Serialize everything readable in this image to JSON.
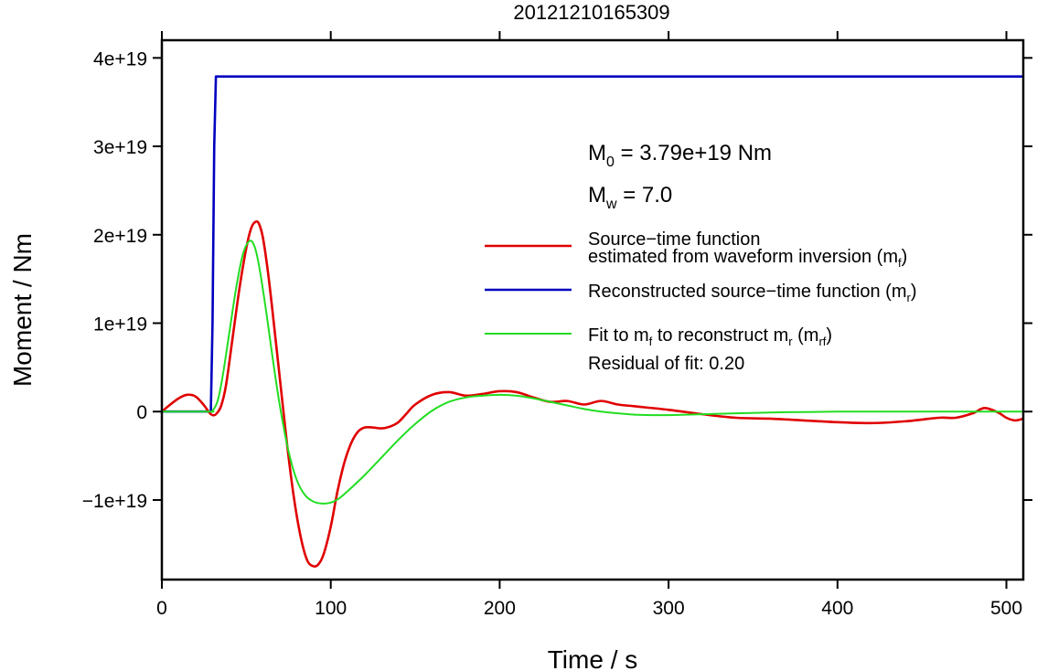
{
  "chart_data": {
    "type": "line",
    "title": "20121210165309",
    "xlabel": "Time / s",
    "ylabel": "Moment / Nm",
    "xlim": [
      0,
      510
    ],
    "ylim": [
      -1.9e+19,
      4.2e+19
    ],
    "x_ticks": [
      0,
      100,
      200,
      300,
      400,
      500
    ],
    "x_tick_labels": [
      "0",
      "100",
      "200",
      "300",
      "400",
      "500"
    ],
    "y_ticks": [
      -1e+19,
      0,
      1e+19,
      2e+19,
      3e+19,
      4e+19
    ],
    "y_tick_labels": [
      "−1e+19",
      "0",
      "1e+19",
      "2e+19",
      "3e+19",
      "4e+19"
    ],
    "grid": false,
    "legend_position": "right",
    "annotations": {
      "m0": {
        "symbol": "M",
        "sub": "0",
        "text": " = 3.79e+19 Nm"
      },
      "mw": {
        "symbol": "M",
        "sub": "w",
        "text": " = 7.0"
      },
      "residual": "Residual of fit: 0.20"
    },
    "legend": [
      {
        "line1": "Source−time function",
        "line2_pre": "estimated from waveform inversion (m",
        "line2_sub": "f",
        "line2_post": ")",
        "color": "#e00000"
      },
      {
        "pre": "Reconstructed source−time function (m",
        "sub": "r",
        "post": ")",
        "color": "#0000c0"
      },
      {
        "pre": "Fit to m",
        "sub": "f",
        "mid": " to reconstruct m",
        "sub2": "r",
        "mid2": " (m",
        "sub3": "rf",
        "post": ")",
        "color": "#22dd22"
      }
    ],
    "series": [
      {
        "color": "#0000c0",
        "x": [
          0,
          29,
          30,
          31,
          32,
          510
        ],
        "y": [
          0,
          0,
          1e+19,
          3e+19,
          3.79e+19,
          3.79e+19
        ]
      },
      {
        "color": "#e00000",
        "x": [
          0,
          5,
          10,
          15,
          20,
          25,
          28,
          30,
          32,
          35,
          38,
          42,
          46,
          50,
          53,
          56,
          58,
          60,
          63,
          66,
          70,
          74,
          78,
          82,
          86,
          90,
          93,
          96,
          100,
          104,
          108,
          112,
          116,
          120,
          125,
          130,
          135,
          140,
          145,
          150,
          160,
          170,
          180,
          190,
          200,
          210,
          220,
          230,
          240,
          250,
          260,
          270,
          280,
          300,
          320,
          340,
          360,
          380,
          400,
          420,
          440,
          460,
          470,
          480,
          487,
          495,
          500,
          505,
          510
        ],
        "y": [
          0,
          8e+17,
          1.5e+18,
          1.9e+18,
          1.7e+18,
          7e+17,
          -1e+17,
          -4e+17,
          -3e+17,
          6e+17,
          3e+18,
          8.5e+18,
          1.4e+19,
          1.85e+19,
          2.08e+19,
          2.15e+19,
          2.1e+19,
          1.95e+19,
          1.55e+19,
          1.05e+19,
          3.5e+18,
          -3.5e+18,
          -9.5e+18,
          -1.4e+19,
          -1.68e+19,
          -1.75e+19,
          -1.72e+19,
          -1.6e+19,
          -1.3e+19,
          -9e+18,
          -5.8e+18,
          -3.6e+18,
          -2.3e+18,
          -1.8e+18,
          -1.8e+18,
          -1.9e+18,
          -1.7e+18,
          -1.2e+18,
          -2e+17,
          8e+17,
          1.9e+18,
          2.2e+18,
          1.8e+18,
          2e+18,
          2.3e+18,
          2.2e+18,
          1.6e+18,
          1.1e+18,
          1.2e+18,
          8e+17,
          1.2e+18,
          8e+17,
          6e+17,
          2e+17,
          -3e+17,
          -7e+17,
          -8e+17,
          -1e+18,
          -1.2e+18,
          -1.3e+18,
          -1.1e+18,
          -7e+17,
          -7e+17,
          -2e+17,
          4e+17,
          -1e+17,
          -7e+17,
          -1e+18,
          -8e+17
        ]
      },
      {
        "color": "#22dd22",
        "x": [
          0,
          28,
          30,
          33,
          36,
          40,
          44,
          48,
          52,
          55,
          58,
          62,
          66,
          70,
          75,
          80,
          85,
          90,
          95,
          100,
          105,
          110,
          120,
          130,
          140,
          150,
          160,
          170,
          180,
          190,
          200,
          210,
          220,
          230,
          240,
          250,
          260,
          270,
          280,
          290,
          300,
          320,
          340,
          360,
          380,
          400,
          420,
          440,
          460,
          480,
          500,
          510
        ],
        "y": [
          0,
          0,
          1e+17,
          1.2e+18,
          4e+18,
          9e+18,
          1.4e+19,
          1.78e+19,
          1.93e+19,
          1.86e+19,
          1.6e+19,
          1.1e+19,
          5.5e+18,
          5e+17,
          -4.5e+18,
          -7.8e+18,
          -9.5e+18,
          -1.02e+19,
          -1.04e+19,
          -1.03e+19,
          -9.8e+18,
          -9e+18,
          -7.2e+18,
          -5.2e+18,
          -3.2e+18,
          -1.4e+18,
          1e+17,
          1.1e+18,
          1.6e+18,
          1.8e+18,
          1.9e+18,
          1.8e+18,
          1.5e+18,
          1.1e+18,
          7e+17,
          3e+17,
          0.0,
          -2e+17,
          -3.5e+17,
          -4e+17,
          -4e+17,
          -3e+17,
          -2e+17,
          -1e+17,
          -5e+16,
          0,
          0,
          0,
          0,
          0,
          0,
          0
        ]
      }
    ]
  }
}
